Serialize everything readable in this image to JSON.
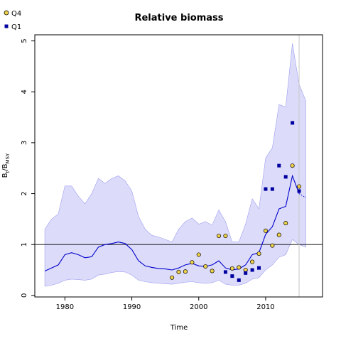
{
  "chart_data": {
    "type": "line",
    "title": "Relative biomass",
    "xlabel": "Time",
    "ylabel": "B",
    "ylabel_sub": "t",
    "ylabel_slash": "/B",
    "ylabel_sub2": "MSY",
    "xlim": [
      1975.5,
      2018.5
    ],
    "ylim": [
      -0.03,
      5.12
    ],
    "x_ticks": [
      1980,
      1990,
      2000,
      2010
    ],
    "y_ticks": [
      0,
      1,
      2,
      3,
      4,
      5
    ],
    "reference_line_y": 1,
    "vertical_line_x": 2015,
    "grid": false,
    "legend_position": "top-left",
    "colors": {
      "line": "#0000cc",
      "band": "#dcdcfa",
      "band_edge": "#9d9df0",
      "q4_fill": "#f0d24a",
      "q1_fill": "#0000a0",
      "vline": "#c8c8c8",
      "hline": "#000000"
    },
    "median": {
      "x": [
        1977,
        1978,
        1979,
        1980,
        1981,
        1982,
        1983,
        1984,
        1985,
        1986,
        1987,
        1988,
        1989,
        1990,
        1991,
        1992,
        1993,
        1994,
        1995,
        1996,
        1997,
        1998,
        1999,
        2000,
        2001,
        2002,
        2003,
        2004,
        2005,
        2006,
        2007,
        2008,
        2009,
        2010,
        2011,
        2012,
        2013,
        2014,
        2015
      ],
      "y": [
        0.48,
        0.54,
        0.6,
        0.8,
        0.84,
        0.8,
        0.74,
        0.76,
        0.95,
        1.0,
        1.02,
        1.05,
        1.02,
        0.9,
        0.68,
        0.58,
        0.55,
        0.53,
        0.52,
        0.5,
        0.54,
        0.6,
        0.63,
        0.58,
        0.57,
        0.6,
        0.68,
        0.54,
        0.5,
        0.52,
        0.6,
        0.8,
        0.84,
        1.2,
        1.35,
        1.7,
        1.75,
        2.35,
        2.0
      ]
    },
    "projection": {
      "x": [
        2015,
        2016
      ],
      "y": [
        2.0,
        1.92
      ]
    },
    "band_upper": {
      "x": [
        1977,
        1978,
        1979,
        1980,
        1981,
        1982,
        1983,
        1984,
        1985,
        1986,
        1987,
        1988,
        1989,
        1990,
        1991,
        1992,
        1993,
        1994,
        1995,
        1996,
        1997,
        1998,
        1999,
        2000,
        2001,
        2002,
        2003,
        2004,
        2005,
        2006,
        2007,
        2008,
        2009,
        2010,
        2011,
        2012,
        2013,
        2014,
        2015,
        2016
      ],
      "y": [
        1.3,
        1.5,
        1.6,
        2.15,
        2.15,
        1.95,
        1.8,
        2.0,
        2.3,
        2.2,
        2.3,
        2.35,
        2.25,
        2.05,
        1.55,
        1.3,
        1.18,
        1.15,
        1.1,
        1.05,
        1.3,
        1.45,
        1.52,
        1.4,
        1.45,
        1.38,
        1.68,
        1.45,
        1.05,
        1.05,
        1.4,
        1.9,
        1.7,
        2.7,
        2.9,
        3.75,
        3.7,
        4.95,
        4.15,
        3.82
      ]
    },
    "band_lower": {
      "x": [
        1977,
        1978,
        1979,
        1980,
        1981,
        1982,
        1983,
        1984,
        1985,
        1986,
        1987,
        1988,
        1989,
        1990,
        1991,
        1992,
        1993,
        1994,
        1995,
        1996,
        1997,
        1998,
        1999,
        2000,
        2001,
        2002,
        2003,
        2004,
        2005,
        2006,
        2007,
        2008,
        2009,
        2010,
        2011,
        2012,
        2013,
        2014,
        2015,
        2016
      ],
      "y": [
        0.18,
        0.2,
        0.24,
        0.3,
        0.32,
        0.31,
        0.3,
        0.32,
        0.4,
        0.42,
        0.45,
        0.47,
        0.46,
        0.4,
        0.3,
        0.27,
        0.25,
        0.24,
        0.23,
        0.22,
        0.24,
        0.26,
        0.27,
        0.25,
        0.24,
        0.25,
        0.3,
        0.22,
        0.2,
        0.2,
        0.24,
        0.32,
        0.35,
        0.5,
        0.6,
        0.75,
        0.8,
        1.1,
        1.0,
        0.95
      ]
    },
    "series": [
      {
        "name": "Q4",
        "marker": "circle",
        "x": [
          1996,
          1997,
          1998,
          1999,
          2000,
          2001,
          2002,
          2003,
          2004,
          2005,
          2006,
          2007,
          2008,
          2009,
          2010,
          2011,
          2012,
          2013,
          2014,
          2015
        ],
        "y": [
          0.35,
          0.46,
          0.47,
          0.65,
          0.8,
          0.57,
          0.48,
          1.17,
          1.17,
          0.53,
          0.55,
          0.5,
          0.66,
          0.82,
          1.27,
          0.98,
          1.19,
          1.42,
          2.55,
          2.14
        ]
      },
      {
        "name": "Q1",
        "marker": "square",
        "x": [
          2004,
          2005,
          2006,
          2007,
          2008,
          2009,
          2010,
          2011,
          2012,
          2013,
          2014,
          2015
        ],
        "y": [
          0.46,
          0.38,
          0.3,
          0.44,
          0.5,
          0.54,
          2.09,
          2.09,
          2.55,
          2.33,
          3.39,
          2.05
        ]
      }
    ]
  }
}
